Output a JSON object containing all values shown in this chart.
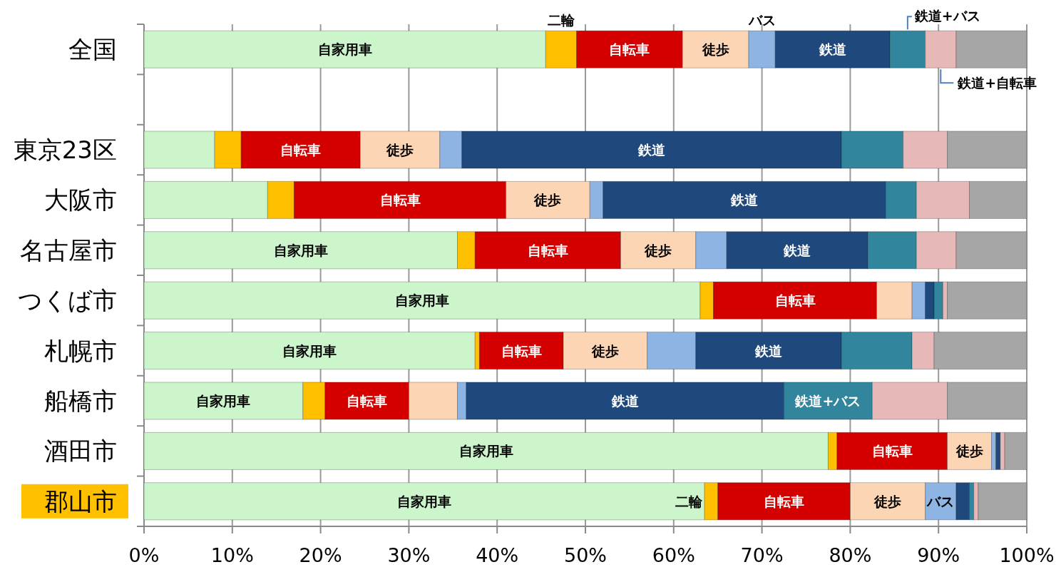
{
  "chart_data": {
    "type": "bar",
    "orientation": "horizontal",
    "stacked": true,
    "categories": [
      "全国",
      null,
      "東京23区",
      "大阪市",
      "名古屋市",
      "つくば市",
      "札幌市",
      "船橋市",
      "酒田市",
      "郡山市"
    ],
    "xlim": [
      0,
      100
    ],
    "xticks": [
      {
        "value": 0,
        "label": "0%"
      },
      {
        "value": 10,
        "label": "10%"
      },
      {
        "value": 20,
        "label": "20%"
      },
      {
        "value": 30,
        "label": "30%"
      },
      {
        "value": 40,
        "label": "40%"
      },
      {
        "value": 50,
        "label": "50%"
      },
      {
        "value": 60,
        "label": "60%"
      },
      {
        "value": 70,
        "label": "70%"
      },
      {
        "value": 80,
        "label": "80%"
      },
      {
        "value": 90,
        "label": "90%"
      },
      {
        "value": 100,
        "label": "100%"
      }
    ],
    "grid": "x",
    "series": [
      {
        "name": "自家用車",
        "color": "#ccf5cc",
        "values": [
          45.5,
          null,
          8,
          14,
          35.5,
          63,
          37.5,
          18,
          77.5,
          63.5
        ],
        "value_labels": [
          null,
          null,
          null,
          null,
          "自家用車",
          "自家用車",
          "自家用車",
          "自家用車",
          "自家用車",
          "自家用車"
        ]
      },
      {
        "name": "二輪",
        "color": "#ffc000",
        "values": [
          3.5,
          null,
          3,
          3,
          2,
          1.5,
          0.5,
          2.5,
          1,
          1.5
        ],
        "value_labels": [
          null,
          null,
          null,
          null,
          null,
          null,
          null,
          null,
          null,
          "二輪"
        ]
      },
      {
        "name": "自転車",
        "color": "#d40000",
        "values": [
          12,
          null,
          13.5,
          24,
          16.5,
          18.5,
          9.5,
          9.5,
          12.5,
          15
        ],
        "value_labels": [
          null,
          null,
          "自転車",
          "自転車",
          "自転車",
          "自転車",
          "自転車",
          "自転車",
          "自転車",
          "自転車"
        ]
      },
      {
        "name": "徒歩",
        "color": "#fcd5b4",
        "values": [
          7.5,
          null,
          9,
          9.5,
          8.5,
          4,
          9.5,
          5.5,
          5,
          8.5
        ],
        "value_labels": [
          null,
          null,
          "徒歩",
          "徒歩",
          "徒歩",
          null,
          "徒歩",
          null,
          "徒歩",
          "徒歩"
        ]
      },
      {
        "name": "バス",
        "color": "#8db4e2",
        "values": [
          3,
          null,
          2.5,
          1.5,
          3.5,
          1.5,
          5.5,
          1,
          0.5,
          3.5
        ],
        "value_labels": [
          null,
          null,
          null,
          null,
          null,
          null,
          null,
          null,
          null,
          "バス"
        ]
      },
      {
        "name": "鉄道",
        "color": "#1f497d",
        "values": [
          13,
          null,
          43,
          32,
          16,
          1,
          16.5,
          36,
          0.5,
          1.5
        ],
        "value_labels": [
          null,
          null,
          "鉄道",
          "鉄道",
          "鉄道",
          null,
          "鉄道",
          "鉄道",
          null,
          null
        ]
      },
      {
        "name": "鉄道+バス",
        "color": "#31859c",
        "values": [
          4,
          null,
          7,
          3.5,
          5.5,
          1,
          8,
          10,
          0,
          0.5
        ],
        "value_labels": [
          null,
          null,
          null,
          null,
          null,
          null,
          null,
          "鉄道+バス",
          null,
          null
        ]
      },
      {
        "name": "鉄道+自転車",
        "color": "#e6b9b8",
        "values": [
          3.5,
          null,
          5,
          6,
          4.5,
          0.5,
          2.5,
          8.5,
          0.5,
          0.5
        ],
        "value_labels": [
          null,
          null,
          null,
          null,
          null,
          null,
          null,
          null,
          null,
          null
        ]
      },
      {
        "color": "#a6a6a6",
        "values": [
          8,
          null,
          9,
          6.5,
          8,
          9,
          10.5,
          9,
          2.5,
          5.5
        ]
      }
    ]
  }
}
